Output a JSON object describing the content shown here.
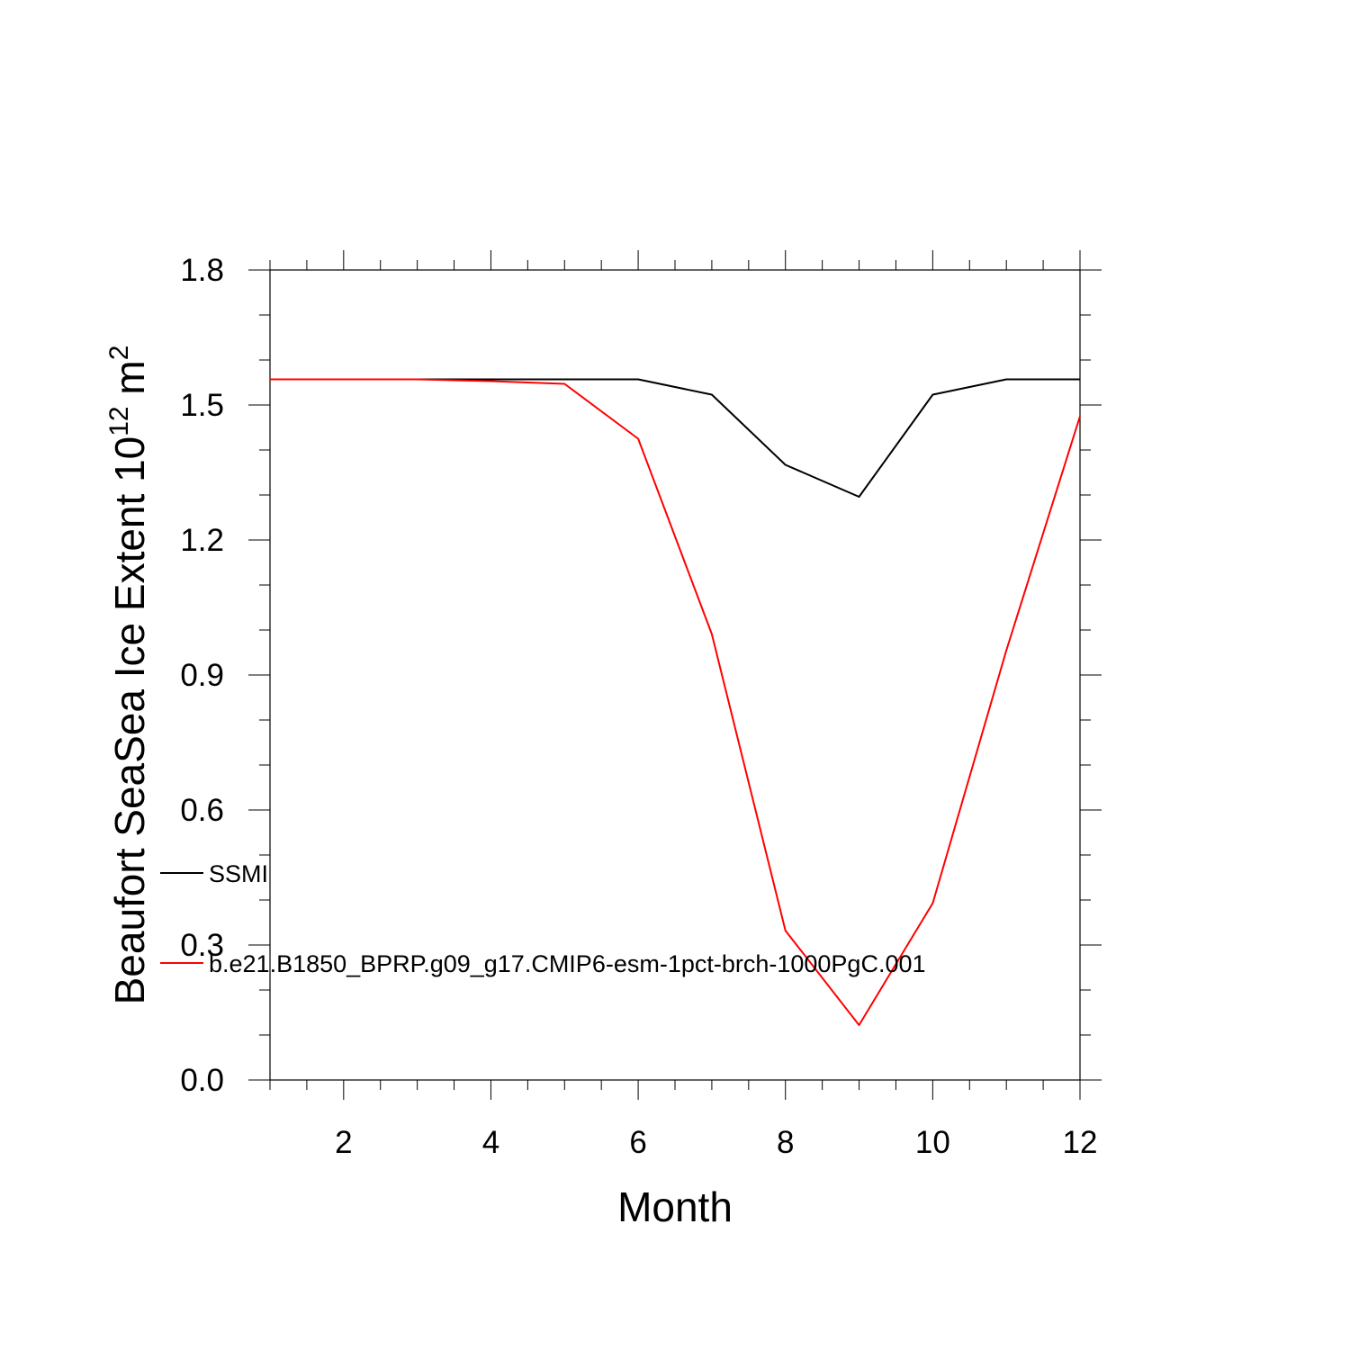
{
  "chart_data": {
    "type": "line",
    "title": "",
    "xlabel": "Month",
    "ylabel": {
      "prefix": "Beaufort SeaSea Ice Extent 10",
      "exponent": "12",
      "unit": " m",
      "unit_exponent": "2"
    },
    "xlim": [
      1,
      12
    ],
    "ylim": [
      0.0,
      1.8
    ],
    "x_major_ticks": [
      2,
      4,
      6,
      8,
      10,
      12
    ],
    "x_tick_labels": [
      "2",
      "4",
      "6",
      "8",
      "10",
      "12"
    ],
    "y_major_ticks": [
      0.0,
      0.3,
      0.6,
      0.9,
      1.2,
      1.5,
      1.8
    ],
    "y_tick_labels": [
      "0.0",
      "0.3",
      "0.6",
      "0.9",
      "1.2",
      "1.5",
      "1.8"
    ],
    "grid": false,
    "legend_position": "inside, lower-left",
    "x": [
      1,
      2,
      3,
      4,
      5,
      6,
      7,
      8,
      9,
      10,
      11,
      12
    ],
    "series": [
      {
        "name": "SSMI",
        "color": "#000000",
        "values": [
          1.557,
          1.557,
          1.557,
          1.557,
          1.557,
          1.557,
          1.523,
          1.367,
          1.296,
          1.523,
          1.557,
          1.557
        ]
      },
      {
        "name": "b.e21.B1850_BPRP.g09_g17.CMIP6-esm-1pct-brch-1000PgC.001",
        "color": "#ff0000",
        "values": [
          1.557,
          1.557,
          1.557,
          1.553,
          1.547,
          1.425,
          0.991,
          0.332,
          0.122,
          0.393,
          0.955,
          1.475
        ]
      }
    ]
  }
}
